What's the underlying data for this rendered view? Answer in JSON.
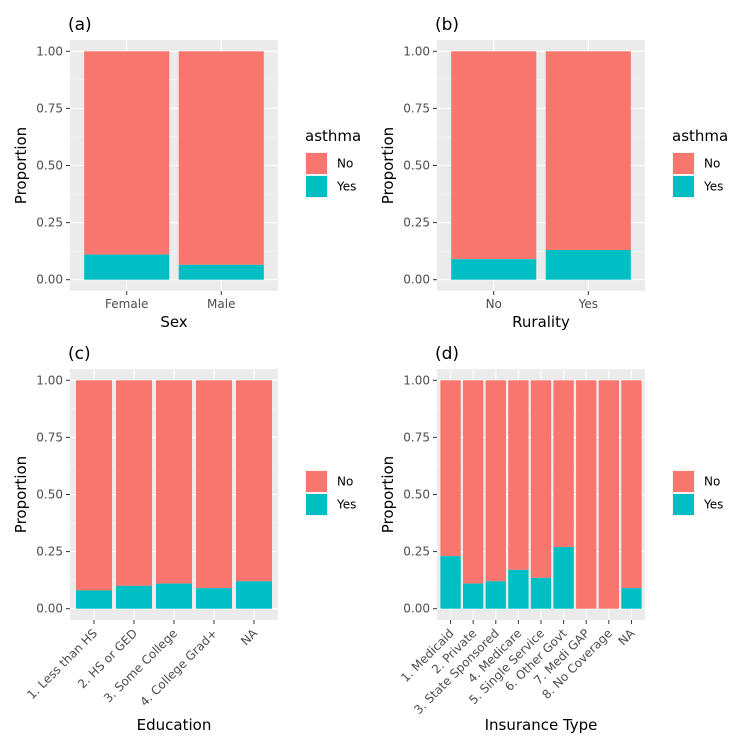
{
  "colors": {
    "no": "#F8766D",
    "yes": "#00BFC4"
  },
  "chart_data": [
    {
      "tag": "(a)",
      "type": "bar",
      "stacked": true,
      "xlabel": "Sex",
      "ylabel": "Proportion",
      "legend_title": "asthma",
      "categories": [
        "Female",
        "Male"
      ],
      "series": [
        {
          "name": "No",
          "values": [
            0.89,
            0.935
          ]
        },
        {
          "name": "Yes",
          "values": [
            0.11,
            0.065
          ]
        }
      ],
      "yticks": [
        "0.00",
        "0.25",
        "0.50",
        "0.75",
        "1.00"
      ],
      "ylim": [
        0,
        1
      ]
    },
    {
      "tag": "(b)",
      "type": "bar",
      "stacked": true,
      "xlabel": "Rurality",
      "ylabel": "Proportion",
      "legend_title": "asthma",
      "categories": [
        "No",
        "Yes"
      ],
      "series": [
        {
          "name": "No",
          "values": [
            0.91,
            0.87
          ]
        },
        {
          "name": "Yes",
          "values": [
            0.09,
            0.13
          ]
        }
      ],
      "yticks": [
        "0.00",
        "0.25",
        "0.50",
        "0.75",
        "1.00"
      ],
      "ylim": [
        0,
        1
      ]
    },
    {
      "tag": "(c)",
      "type": "bar",
      "stacked": true,
      "xlabel": "Education",
      "ylabel": "Proportion",
      "legend_title": "",
      "categories": [
        "1. Less than HS",
        "2. HS or GED",
        "3. Some College",
        "4. College Grad+",
        "NA"
      ],
      "series": [
        {
          "name": "No",
          "values": [
            0.92,
            0.9,
            0.89,
            0.91,
            0.88
          ]
        },
        {
          "name": "Yes",
          "values": [
            0.08,
            0.1,
            0.11,
            0.09,
            0.12
          ]
        }
      ],
      "yticks": [
        "0.00",
        "0.25",
        "0.50",
        "0.75",
        "1.00"
      ],
      "ylim": [
        0,
        1
      ]
    },
    {
      "tag": "(d)",
      "type": "bar",
      "stacked": true,
      "xlabel": "Insurance Type",
      "ylabel": "Proportion",
      "legend_title": "",
      "categories": [
        "1. Medicaid",
        "2. Private",
        "3. State Sponsored",
        "4. Medicare",
        "5. Single Service",
        "6. Other Govt",
        "7. Medi GAP",
        "8. No Coverage",
        "NA"
      ],
      "series": [
        {
          "name": "No",
          "values": [
            0.77,
            0.89,
            0.88,
            0.83,
            0.865,
            0.73,
            1.0,
            1.0,
            0.91
          ]
        },
        {
          "name": "Yes",
          "values": [
            0.23,
            0.11,
            0.12,
            0.17,
            0.135,
            0.27,
            0.0,
            0.0,
            0.09
          ]
        }
      ],
      "yticks": [
        "0.00",
        "0.25",
        "0.50",
        "0.75",
        "1.00"
      ],
      "ylim": [
        0,
        1
      ]
    }
  ]
}
